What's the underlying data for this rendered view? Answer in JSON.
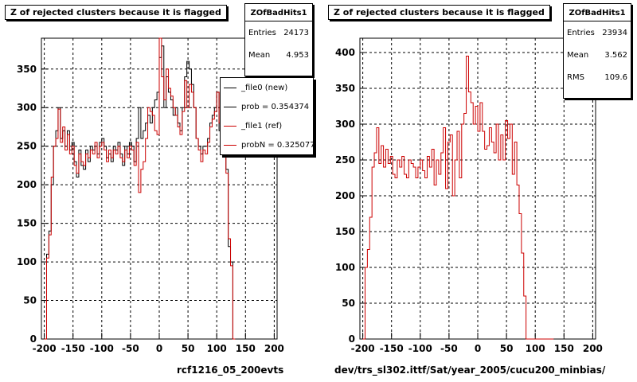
{
  "footer_note": "",
  "chart_data": [
    {
      "type": "histogram",
      "title": "Z of rejected clusters  because it is flagged",
      "xlabel": "rcf1216_05_200evts",
      "ylabel": "",
      "xlim": [
        -205,
        205
      ],
      "ylim": [
        0,
        390
      ],
      "xticks": [
        -200,
        -150,
        -100,
        -50,
        0,
        50,
        100,
        150,
        200
      ],
      "yticks": [
        0,
        50,
        100,
        150,
        200,
        250,
        300,
        350
      ],
      "grid": true,
      "bin_width": 4,
      "x_start": -200,
      "stats": {
        "name": "ZOfBadHits1",
        "rows": [
          {
            "label": "Entries",
            "value": "24173"
          },
          {
            "label": "Mean",
            "value": "4.953"
          }
        ]
      },
      "legend": {
        "position": "top-right",
        "entries": [
          {
            "label": "_file0 (new)",
            "color": "#000000"
          },
          {
            "label": "prob = 0.354374",
            "color": "#000000"
          },
          {
            "label": "_file1 (ref)",
            "color": "#cc0000"
          },
          {
            "label": "probN = 0.325077",
            "color": "#cc0000"
          }
        ]
      },
      "series": [
        {
          "name": "_file0 (new)",
          "color": "#000000",
          "values": [
            0,
            110,
            140,
            200,
            250,
            270,
            300,
            260,
            270,
            250,
            270,
            245,
            255,
            230,
            210,
            245,
            225,
            220,
            245,
            230,
            250,
            245,
            250,
            240,
            255,
            260,
            250,
            235,
            240,
            230,
            250,
            245,
            255,
            240,
            225,
            250,
            240,
            255,
            250,
            230,
            260,
            300,
            260,
            270,
            280,
            290,
            280,
            300,
            310,
            320,
            365,
            380,
            300,
            340,
            320,
            310,
            290,
            300,
            280,
            270,
            300,
            340,
            360,
            350,
            330,
            300,
            260,
            250,
            240,
            250,
            250,
            260,
            280,
            290,
            300,
            320,
            270,
            250,
            240,
            220,
            120,
            100,
            0
          ]
        },
        {
          "name": "_file1 (ref)",
          "color": "#cc0000",
          "values": [
            0,
            105,
            135,
            210,
            250,
            260,
            298,
            255,
            275,
            245,
            265,
            240,
            250,
            225,
            215,
            240,
            230,
            225,
            240,
            235,
            245,
            240,
            255,
            235,
            250,
            255,
            245,
            230,
            245,
            235,
            245,
            240,
            250,
            235,
            230,
            245,
            235,
            250,
            245,
            225,
            255,
            190,
            220,
            230,
            260,
            300,
            295,
            290,
            270,
            265,
            390,
            340,
            310,
            350,
            325,
            315,
            300,
            290,
            275,
            265,
            295,
            335,
            300,
            330,
            320,
            300,
            260,
            245,
            230,
            245,
            240,
            255,
            275,
            285,
            295,
            320,
            280,
            260,
            240,
            215,
            130,
            95,
            0
          ]
        }
      ]
    },
    {
      "type": "histogram",
      "title": "Z of rejected clusters  because it is flagged",
      "xlabel": "dev/trs_sl302.ittf/Sat/year_2005/cucu200_minbias/",
      "ylabel": "",
      "xlim": [
        -205,
        205
      ],
      "ylim": [
        0,
        420
      ],
      "xticks": [
        -200,
        -150,
        -100,
        -50,
        0,
        50,
        100,
        150,
        200
      ],
      "yticks": [
        0,
        50,
        100,
        150,
        200,
        250,
        300,
        350,
        400
      ],
      "grid": true,
      "bin_width": 4,
      "x_start": -200,
      "stats": {
        "name": "ZOfBadHits1",
        "rows": [
          {
            "label": "Entries",
            "value": "23934"
          },
          {
            "label": "Mean",
            "value": "3.562"
          },
          {
            "label": "RMS",
            "value": "109.6"
          }
        ]
      },
      "series": [
        {
          "name": "",
          "color": "#cc0000",
          "values": [
            0,
            100,
            125,
            170,
            240,
            260,
            295,
            245,
            270,
            240,
            265,
            245,
            255,
            230,
            225,
            250,
            240,
            255,
            230,
            225,
            250,
            245,
            240,
            225,
            240,
            250,
            235,
            225,
            255,
            240,
            265,
            215,
            250,
            230,
            260,
            295,
            210,
            275,
            285,
            200,
            250,
            290,
            225,
            300,
            315,
            395,
            345,
            330,
            300,
            325,
            290,
            330,
            290,
            265,
            270,
            295,
            275,
            260,
            300,
            250,
            285,
            250,
            305,
            280,
            300,
            230,
            275,
            215,
            175,
            120,
            60,
            0,
            0,
            0,
            0,
            0,
            0,
            0,
            0,
            0,
            0,
            0,
            0
          ]
        }
      ]
    }
  ]
}
